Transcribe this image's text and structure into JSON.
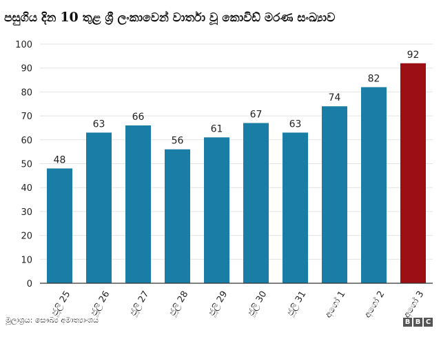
{
  "title": {
    "prefix": "පසුගිය දින",
    "number": "10",
    "suffix": "තුළ ශ්‍රී ලංකාවෙන් වාර්තා වූ කොවිඩ් මරණ සංඛ්‍යාව"
  },
  "source": "මූලාශ්‍රය: සෞඛ්‍ය අමාත්‍යාංශය",
  "logo": {
    "letters": [
      "B",
      "B",
      "C"
    ]
  },
  "colors": {
    "bar": "#1a7da6",
    "highlight": "#9c0f14",
    "grid": "#e3e3e3",
    "axis": "#333333",
    "text": "#222222"
  },
  "chart_data": {
    "type": "bar",
    "title": "පසුගිය දින 10 තුළ ශ්‍රී ලංකාවෙන් වාර්තා වූ කොවිඩ් මරණ සංඛ්‍යාව",
    "categories": [
      "ජූලි 25",
      "ජූලි 26",
      "ජූලි 27",
      "ජූලි 28",
      "ජූලි 29",
      "ජූලි 30",
      "ජූලි 31",
      "අගෝ 1",
      "අගෝ 2",
      "අගෝ 3"
    ],
    "values": [
      48,
      63,
      66,
      56,
      61,
      67,
      63,
      74,
      82,
      92
    ],
    "highlight_index": 9,
    "ylim": [
      0,
      100
    ],
    "yticks": [
      0,
      10,
      20,
      30,
      40,
      50,
      60,
      70,
      80,
      90,
      100
    ],
    "xlabel": "",
    "ylabel": "",
    "grid": true
  }
}
